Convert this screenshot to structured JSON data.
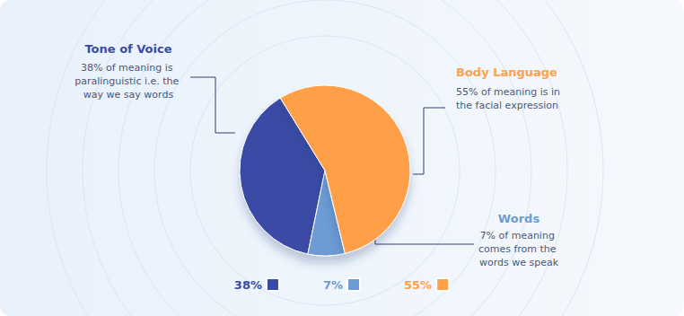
{
  "chart_data": {
    "type": "pie",
    "categories": [
      "Tone of Voice",
      "Words",
      "Body Language"
    ],
    "values": [
      38,
      7,
      55
    ],
    "value_labels": [
      "38%",
      "7%",
      "55%"
    ],
    "colors": [
      "#3b4ba5",
      "#6e9bd4",
      "#ffa04a"
    ],
    "annotations": [
      "38% of meaning is paralinguistic i.e. the way we say words",
      "7% of meaning comes from the words we speak",
      "55% of meaning is in the facial expression"
    ],
    "legend": "bottom"
  }
}
